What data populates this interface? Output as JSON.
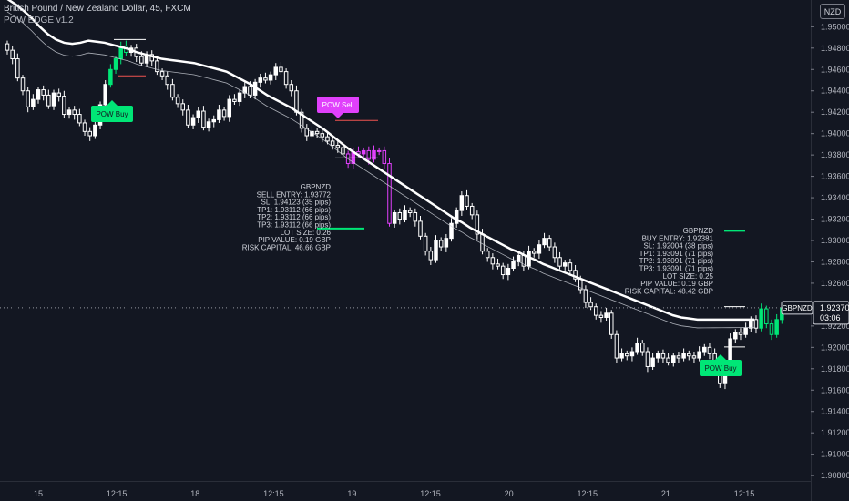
{
  "header": {
    "symbol_line": "British Pound / New Zealand Dollar, 45, FXCM",
    "indicator": "POW EDGE v1.2"
  },
  "currency_badge": "NZD",
  "colors": {
    "background": "#131722",
    "bull_candle": "#ffffff",
    "signal_bull": "#00e676",
    "signal_bear": "#e040fb",
    "ma_fast": "#ffffff",
    "ma_slow": "#d1d4dc",
    "signal_buy_bg": "#00e676",
    "signal_sell_bg": "#e040fb"
  },
  "chart_data": {
    "type": "candlestick",
    "symbol": "GBPNZD",
    "timeframe": "45",
    "source": "FXCM",
    "y_axis": {
      "ticks": [
        "1.95000",
        "1.94800",
        "1.94600",
        "1.94400",
        "1.94200",
        "1.94000",
        "1.93800",
        "1.93600",
        "1.93400",
        "1.93200",
        "1.93000",
        "1.92800",
        "1.92600",
        "1.92400",
        "1.92200",
        "1.92000",
        "1.91800",
        "1.91600",
        "1.91400",
        "1.91200",
        "1.91000",
        "1.90800"
      ],
      "ylim": [
        1.9075,
        1.9525
      ]
    },
    "x_axis": {
      "ticks": [
        "15",
        "12:15",
        "18",
        "12:15",
        "19",
        "12:15",
        "20",
        "12:15",
        "21",
        "12:15"
      ]
    },
    "close": [
      1.9478,
      1.947,
      1.9452,
      1.944,
      1.9425,
      1.9432,
      1.9441,
      1.9436,
      1.9426,
      1.9438,
      1.9435,
      1.9418,
      1.9422,
      1.9418,
      1.941,
      1.9402,
      1.9398,
      1.9408,
      1.9427,
      1.9446,
      1.946,
      1.947,
      1.9482,
      1.9476,
      1.948,
      1.9472,
      1.9466,
      1.9474,
      1.9468,
      1.9458,
      1.9454,
      1.9446,
      1.9434,
      1.9428,
      1.9422,
      1.9408,
      1.9415,
      1.9421,
      1.9406,
      1.9411,
      1.9413,
      1.9422,
      1.9416,
      1.9432,
      1.943,
      1.9438,
      1.9444,
      1.9436,
      1.9448,
      1.9452,
      1.945,
      1.9455,
      1.9462,
      1.9458,
      1.9446,
      1.944,
      1.942,
      1.9405,
      1.9398,
      1.9402,
      1.94,
      1.9397,
      1.9393,
      1.9389,
      1.9387,
      1.9381,
      1.9372,
      1.9383,
      1.9381,
      1.9384,
      1.9376,
      1.9384,
      1.9384,
      1.9372,
      1.9316,
      1.9326,
      1.932,
      1.9328,
      1.9326,
      1.9318,
      1.9304,
      1.929,
      1.9282,
      1.93,
      1.9294,
      1.9302,
      1.9316,
      1.9328,
      1.9342,
      1.9332,
      1.9324,
      1.9306,
      1.929,
      1.9284,
      1.9278,
      1.9276,
      1.9268,
      1.9274,
      1.928,
      1.9286,
      1.9276,
      1.929,
      1.9288,
      1.9296,
      1.9302,
      1.9294,
      1.9284,
      1.9276,
      1.9279,
      1.9272,
      1.9264,
      1.9254,
      1.9242,
      1.9238,
      1.923,
      1.9228,
      1.9232,
      1.9212,
      1.919,
      1.9194,
      1.9192,
      1.9196,
      1.9204,
      1.9196,
      1.9182,
      1.919,
      1.9194,
      1.919,
      1.9186,
      1.9192,
      1.919,
      1.9194,
      1.9192,
      1.919,
      1.9196,
      1.92,
      1.9194,
      1.9182,
      1.9166,
      1.9178,
      1.9208,
      1.9214,
      1.9212,
      1.9218,
      1.9226,
      1.9218,
      1.9236,
      1.9222,
      1.9212,
      1.9226,
      1.9237
    ],
    "ema_fast": [
      1.9526,
      1.9521,
      1.9515,
      1.9508,
      1.95,
      1.9493,
      1.9488,
      1.9485,
      1.9484,
      1.9485,
      1.9487,
      1.9486,
      1.9485,
      1.9483,
      1.9481,
      1.9479,
      1.9476,
      1.9474,
      1.9472,
      1.947,
      1.9469,
      1.9468,
      1.9467,
      1.9466,
      1.9464,
      1.9462,
      1.946,
      1.9458,
      1.9454,
      1.945,
      1.9446,
      1.9441,
      1.9436,
      1.9432,
      1.9428,
      1.9424,
      1.9419,
      1.9414,
      1.9409,
      1.9404,
      1.9398,
      1.9392,
      1.9386,
      1.9381,
      1.9376,
      1.9371,
      1.9366,
      1.9361,
      1.9356,
      1.9351,
      1.9346,
      1.9341,
      1.9336,
      1.9331,
      1.9326,
      1.9321,
      1.9317,
      1.9312,
      1.9308,
      1.9304,
      1.93,
      1.9296,
      1.9292,
      1.9289,
      1.9285,
      1.9282,
      1.9278,
      1.9275,
      1.9272,
      1.9269,
      1.9266,
      1.9263,
      1.926,
      1.9257,
      1.9254,
      1.9251,
      1.9248,
      1.9245,
      1.9242,
      1.9239,
      1.9236,
      1.9233,
      1.923,
      1.9228,
      1.9227,
      1.9226,
      1.9226,
      1.9226,
      1.9226,
      1.9226,
      1.9226,
      1.9226,
      1.9226
    ]
  },
  "signals": {
    "buy1_label": "POW Buy",
    "sell_label": "POW Sell",
    "buy2_label": "POW Buy"
  },
  "sell_box": {
    "lines": [
      "GBPNZD",
      "SELL ENTRY: 1.93772",
      "SL: 1.94123 (35 pips)",
      "TP1: 1.93112 (66 pips)",
      "TP2: 1.93112 (66 pips)",
      "TP3: 1.93112 (66 pips)",
      "LOT SIZE: 0.26",
      "PIP VALUE: 0.19 GBP",
      "RISK CAPITAL: 46.66 GBP"
    ]
  },
  "buy_box": {
    "lines": [
      "GBPNZD",
      "BUY ENTRY: 1.92381",
      "SL: 1.92004 (38 pips)",
      "TP1: 1.93091 (71 pips)",
      "TP2: 1.93091 (71 pips)",
      "TP3: 1.93091 (71 pips)",
      "LOT SIZE: 0.25",
      "PIP VALUE: 0.19 GBP",
      "RISK CAPITAL: 48.42 GBP"
    ]
  },
  "price_tag": {
    "symbol": "GBPNZD",
    "price": "1.92370",
    "countdown": "03:06"
  }
}
